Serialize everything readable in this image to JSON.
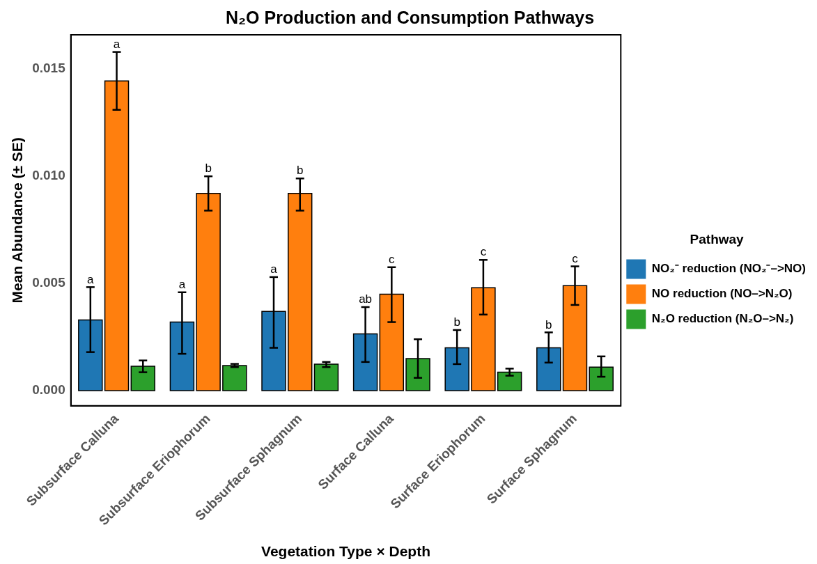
{
  "chart_data": {
    "type": "bar",
    "title": "N₂O Production and Consumption Pathways",
    "xlabel": "Vegetation Type × Depth",
    "ylabel": "Mean Abundance (± SE)",
    "legend_title": "Pathway",
    "categories": [
      "Subsurface Calluna",
      "Subsurface Eriophorum",
      "Subsurface Sphagnum",
      "Surface Calluna",
      "Surface Eriophorum",
      "Surface Sphagnum"
    ],
    "series": [
      {
        "name": "NO₂⁻ reduction (NO₂⁻–>NO)",
        "color": "#1f77b4",
        "values": [
          0.0033,
          0.0032,
          0.0037,
          0.00265,
          0.002,
          0.002
        ],
        "errors": [
          [
            0.0018,
            0.00483
          ],
          [
            0.00172,
            0.00459
          ],
          [
            0.002,
            0.0053
          ],
          [
            0.00134,
            0.0039
          ],
          [
            0.00124,
            0.00283
          ],
          [
            0.00131,
            0.00272
          ]
        ],
        "value_labels": [
          "a",
          "a",
          "a",
          "ab",
          "b",
          "b"
        ]
      },
      {
        "name": "NO reduction (NO–>N₂O)",
        "color": "#ff7f0e",
        "values": [
          0.01445,
          0.0092,
          0.0092,
          0.0045,
          0.0048,
          0.0049
        ],
        "errors": [
          [
            0.0131,
            0.0158
          ],
          [
            0.0084,
            0.01
          ],
          [
            0.0084,
            0.0099
          ],
          [
            0.0032,
            0.00576
          ],
          [
            0.00355,
            0.0061
          ],
          [
            0.004,
            0.0058
          ]
        ],
        "value_labels": [
          "a",
          "b",
          "b",
          "c",
          "c",
          "c"
        ]
      },
      {
        "name": "N₂O reduction (N₂O–>N₂)",
        "color": "#2ca02c",
        "values": [
          0.00114,
          0.00117,
          0.00124,
          0.0015,
          0.00086,
          0.0011
        ],
        "errors": [
          [
            0.00086,
            0.00141
          ],
          [
            0.0011,
            0.00125
          ],
          [
            0.0011,
            0.00134
          ],
          [
            0.0006,
            0.0024
          ],
          [
            0.0007,
            0.00103
          ],
          [
            0.00065,
            0.0016
          ]
        ]
      }
    ],
    "ylim": [
      -0.0007,
      0.0166
    ],
    "yticks": [
      {
        "value": 0,
        "label": "0.000"
      },
      {
        "value": 0.005,
        "label": "0.005"
      },
      {
        "value": 0.01,
        "label": "0.010"
      },
      {
        "value": 0.015,
        "label": "0.015"
      }
    ],
    "grid": false,
    "legend": "right"
  }
}
